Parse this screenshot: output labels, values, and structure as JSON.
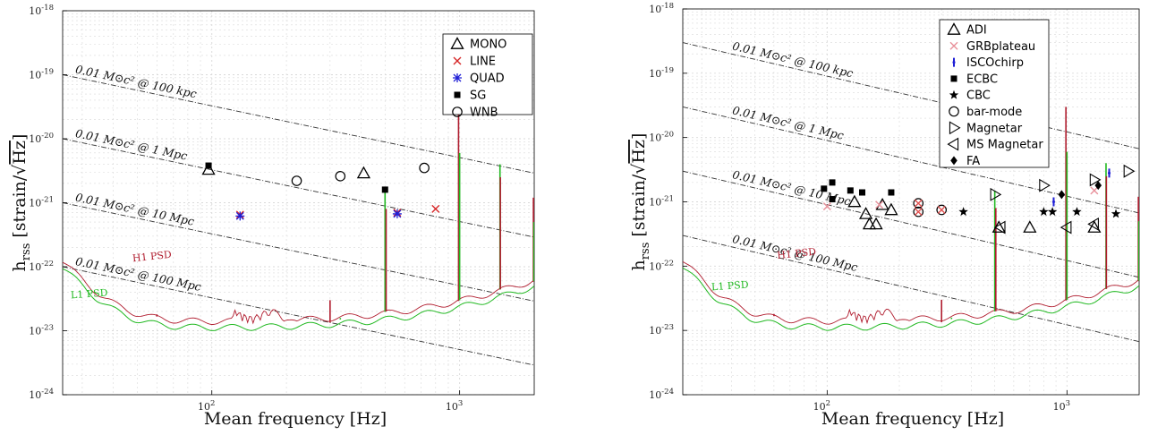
{
  "colors": {
    "mono": "#000000",
    "line": "#d62728",
    "quad": "#1f1fd6",
    "sg": "#000000",
    "wnb": "#000000",
    "h1": "#b01c2e",
    "l1": "#22b922",
    "grid": "#d9d9d9",
    "guide": "#333333",
    "marker_red": "#e0504f",
    "marker_pink": "#e8909a"
  },
  "chart_data": [
    {
      "type": "scatter",
      "xlabel": "Mean frequency [Hz]",
      "ylabel_parts": {
        "main": "h",
        "sub": "rss",
        "unit": "[strain/",
        "sqrt": "Hz",
        "close": "]"
      },
      "xscale": "log",
      "yscale": "log",
      "xlim": [
        25,
        2000
      ],
      "ylim": [
        1e-24,
        1e-18
      ],
      "xticks": [
        {
          "v": 100,
          "b": "10",
          "e": "2"
        },
        {
          "v": 1000,
          "b": "10",
          "e": "3"
        }
      ],
      "yticks": [
        {
          "v": 1e-24,
          "b": "10",
          "e": "-24"
        },
        {
          "v": 1e-23,
          "b": "10",
          "e": "-23"
        },
        {
          "v": 1e-22,
          "b": "10",
          "e": "-22"
        },
        {
          "v": 1e-21,
          "b": "10",
          "e": "-21"
        },
        {
          "v": 1e-20,
          "b": "10",
          "e": "-20"
        },
        {
          "v": 1e-19,
          "b": "10",
          "e": "-19"
        },
        {
          "v": 1e-18,
          "b": "10",
          "e": "-18"
        }
      ],
      "grid": true,
      "legend_position": "top-right",
      "series": [
        {
          "name": "MONO",
          "marker": "triangle-up",
          "color": "#000000",
          "points": [
            [
              97,
              3.3e-21
            ],
            [
              410,
              2.9e-21
            ]
          ]
        },
        {
          "name": "LINE",
          "marker": "x",
          "color": "#d62728",
          "points": [
            [
              130,
              6.5e-22
            ],
            [
              560,
              7e-22
            ],
            [
              800,
              8e-22
            ]
          ]
        },
        {
          "name": "QUAD",
          "marker": "asterisk",
          "color": "#1f1fd6",
          "points": [
            [
              130,
              6.2e-22
            ],
            [
              560,
              6.7e-22
            ]
          ]
        },
        {
          "name": "SG",
          "marker": "square",
          "color": "#000000",
          "points": [
            [
              97,
              3.8e-21
            ],
            [
              500,
              1.6e-21
            ]
          ]
        },
        {
          "name": "WNB",
          "marker": "circle",
          "color": "#000000",
          "points": [
            [
              220,
              2.2e-21
            ],
            [
              330,
              2.6e-21
            ],
            [
              720,
              3.5e-21
            ]
          ]
        }
      ],
      "guide_lines": [
        {
          "label": "0.01 M⊙c² @ 100 kpc",
          "y_at_xmin": 1e-19,
          "y_at_xmax": 2.9e-21
        },
        {
          "label": "0.01 M⊙c² @ 1 Mpc",
          "y_at_xmin": 1e-20,
          "y_at_xmax": 2.9e-22
        },
        {
          "label": "0.01 M⊙c² @ 10 Mpc",
          "y_at_xmin": 1e-21,
          "y_at_xmax": 2.9e-23
        },
        {
          "label": "0.01 M⊙c² @ 100 Mpc",
          "y_at_xmin": 1e-22,
          "y_at_xmax": 2.9e-24
        }
      ],
      "psd_labels": [
        "H1 PSD",
        "L1 PSD"
      ]
    },
    {
      "type": "scatter",
      "xlabel": "Mean frequency [Hz]",
      "ylabel_parts": {
        "main": "h",
        "sub": "rss",
        "unit": "[strain/",
        "sqrt": "Hz",
        "close": "]"
      },
      "xscale": "log",
      "yscale": "log",
      "xlim": [
        25,
        2000
      ],
      "ylim": [
        1e-24,
        1e-18
      ],
      "xticks": [
        {
          "v": 100,
          "b": "10",
          "e": "2"
        },
        {
          "v": 1000,
          "b": "10",
          "e": "3"
        }
      ],
      "yticks": [
        {
          "v": 1e-24,
          "b": "10",
          "e": "-24"
        },
        {
          "v": 1e-23,
          "b": "10",
          "e": "-23"
        },
        {
          "v": 1e-22,
          "b": "10",
          "e": "-22"
        },
        {
          "v": 1e-21,
          "b": "10",
          "e": "-21"
        },
        {
          "v": 1e-20,
          "b": "10",
          "e": "-20"
        },
        {
          "v": 1e-19,
          "b": "10",
          "e": "-19"
        },
        {
          "v": 1e-18,
          "b": "10",
          "e": "-18"
        }
      ],
      "grid": true,
      "legend_position": "top-right",
      "series": [
        {
          "name": "ADI",
          "marker": "triangle-up",
          "color": "#000000",
          "points": [
            [
              130,
              1e-21
            ],
            [
              145,
              6.5e-22
            ],
            [
              150,
              4.5e-22
            ],
            [
              160,
              4.5e-22
            ],
            [
              170,
              9e-22
            ],
            [
              185,
              7.5e-22
            ],
            [
              520,
              4e-22
            ],
            [
              700,
              4e-22
            ],
            [
              1300,
              4e-22
            ]
          ]
        },
        {
          "name": "GRBplateau",
          "marker": "x",
          "color": "#e8909a",
          "points": [
            [
              100,
              8.5e-22
            ],
            [
              165,
              9e-22
            ],
            [
              1300,
              1.5e-21
            ]
          ]
        },
        {
          "name": "ISCOchirp",
          "marker": "plus",
          "color": "#1f1fd6",
          "points": [
            [
              880,
              1e-21
            ],
            [
              1500,
              2.8e-21
            ]
          ]
        },
        {
          "name": "ECBC",
          "marker": "square",
          "color": "#000000",
          "points": [
            [
              97,
              1.6e-21
            ],
            [
              105,
              2e-21
            ],
            [
              105,
              1.1e-21
            ],
            [
              125,
              1.5e-21
            ],
            [
              140,
              1.4e-21
            ],
            [
              185,
              1.4e-21
            ]
          ]
        },
        {
          "name": "CBC",
          "marker": "star",
          "color": "#000000",
          "points": [
            [
              370,
              7e-22
            ],
            [
              800,
              7e-22
            ],
            [
              870,
              7e-22
            ],
            [
              1100,
              7e-22
            ],
            [
              1600,
              6.5e-22
            ]
          ]
        },
        {
          "name": "bar-mode",
          "marker": "circle",
          "color": "#000000",
          "points": [
            [
              240,
              7e-22
            ],
            [
              240,
              9.5e-22
            ],
            [
              300,
              7.5e-22
            ]
          ]
        },
        {
          "name": "Magnetar",
          "marker": "triangle-right",
          "color": "#000000",
          "points": [
            [
              500,
              1.3e-21
            ],
            [
              800,
              1.8e-21
            ],
            [
              1300,
              2.2e-21
            ],
            [
              1800,
              3e-21
            ]
          ]
        },
        {
          "name": "MS Magnetar",
          "marker": "triangle-left",
          "color": "#000000",
          "points": [
            [
              530,
              4e-22
            ],
            [
              1000,
              4e-22
            ],
            [
              1300,
              4.5e-22
            ]
          ]
        },
        {
          "name": "FA",
          "marker": "diamond",
          "color": "#000000",
          "points": [
            [
              950,
              1.3e-21
            ],
            [
              1350,
              1.8e-21
            ]
          ]
        }
      ],
      "overlays": [
        {
          "marker": "x",
          "color": "#e0504f",
          "points": [
            [
              240,
              7e-22
            ],
            [
              240,
              9.5e-22
            ],
            [
              300,
              7.5e-22
            ]
          ]
        }
      ],
      "guide_lines": [
        {
          "label": "0.01 M⊙c² @ 100 kpc",
          "y_at_xmin": 3e-19,
          "y_at_xmax": 6.7e-21
        },
        {
          "label": "0.01 M⊙c² @ 1 Mpc",
          "y_at_xmin": 3e-20,
          "y_at_xmax": 6.7e-22
        },
        {
          "label": "0.01 M⊙c² @ 10 Mpc",
          "y_at_xmin": 3e-21,
          "y_at_xmax": 6.7e-23
        },
        {
          "label": "0.01 M⊙c² @ 100 Mpc",
          "y_at_xmin": 3e-22,
          "y_at_xmax": 6.7e-24
        }
      ],
      "psd_labels": [
        "H1 PSD",
        "L1 PSD"
      ]
    }
  ]
}
